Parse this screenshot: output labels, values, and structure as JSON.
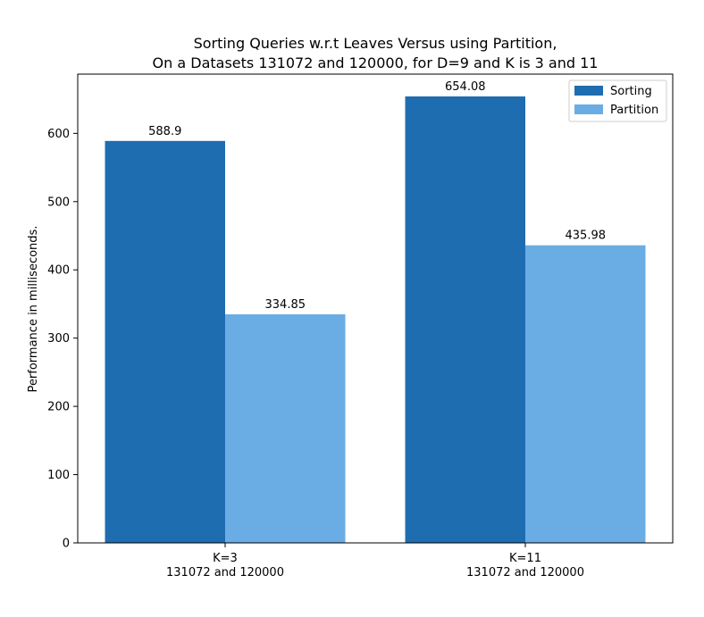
{
  "chart_data": {
    "type": "bar",
    "title_line1": "Sorting Queries w.r.t Leaves Versus using Partition,",
    "title_line2": "On a Datasets 131072 and 120000, for D=9 and K is 3 and 11",
    "ylabel": "Performance in milliseconds.",
    "xlabel": "",
    "categories": [
      [
        "K=3",
        "131072 and 120000"
      ],
      [
        "K=11",
        "131072 and 120000"
      ]
    ],
    "series": [
      {
        "name": "Sorting",
        "color": "#1f6db1",
        "values": [
          588.9,
          654.08
        ],
        "labels": [
          "588.9",
          "654.08"
        ]
      },
      {
        "name": "Partition",
        "color": "#6aade4",
        "values": [
          334.85,
          435.98
        ],
        "labels": [
          "334.85",
          "435.98"
        ]
      }
    ],
    "yticks": [
      0,
      100,
      200,
      300,
      400,
      500,
      600
    ],
    "ylim": [
      0,
      686.8
    ],
    "grid": false,
    "legend_position": "top-right"
  }
}
